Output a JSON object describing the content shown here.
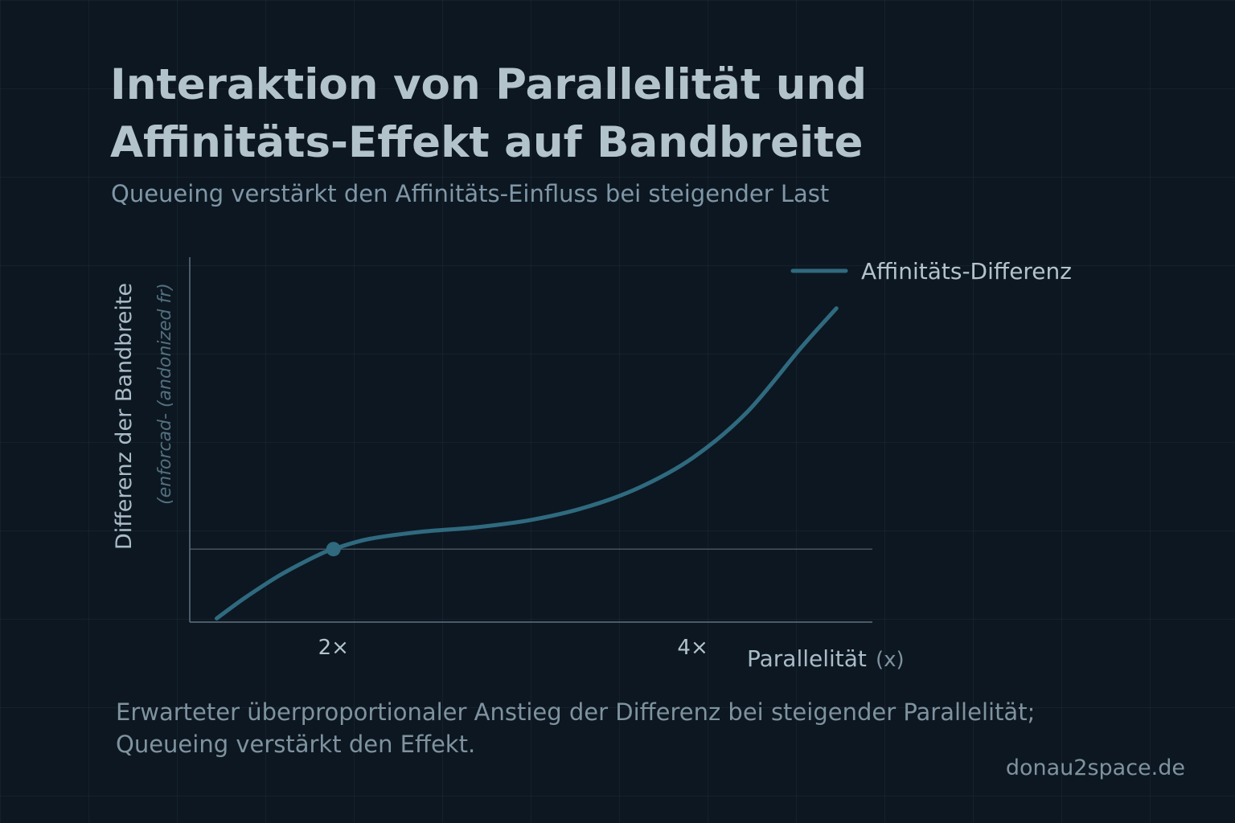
{
  "header": {
    "title_line1": "Interaktion von Parallelität und",
    "title_line2": "Affinitäts-Effekt auf Bandbreite",
    "subtitle": "Queueing verstärkt den Affinitäts-Einfluss bei steigender Last"
  },
  "note": {
    "line1": "Erwarteter überproportionaler Anstieg der Differenz bei steigender Parallelität;",
    "line2": "Queueing verstärkt den Effekt."
  },
  "footer": {
    "site": "donau2space.de"
  },
  "chart_data": {
    "type": "line",
    "xlabel_main": "Parallelität",
    "xlabel_unit": "(x)",
    "ylabel_main": "Differenz der Bandbreite",
    "ylabel_sub": "(enforcad- (andonized fr)",
    "x_ticks": [
      {
        "value": 2,
        "label": "2×"
      },
      {
        "value": 4,
        "label": "4×"
      }
    ],
    "xlim": [
      1.2,
      5.0
    ],
    "ylim": [
      -1.0,
      4.0
    ],
    "reference_line_y": 0,
    "grid": true,
    "legend_position": "top-right",
    "series": [
      {
        "name": "Affinitäts-Differenz",
        "color": "#2f6a7f",
        "x": [
          1.35,
          1.5,
          1.7,
          1.9,
          2.0,
          2.2,
          2.5,
          2.8,
          3.1,
          3.4,
          3.7,
          4.0,
          4.3,
          4.6,
          4.8
        ],
        "y": [
          -0.95,
          -0.68,
          -0.36,
          -0.1,
          0.0,
          0.14,
          0.24,
          0.3,
          0.4,
          0.57,
          0.84,
          1.25,
          1.87,
          2.75,
          3.3
        ]
      }
    ],
    "highlight_point": {
      "x": 2,
      "y": 0
    }
  }
}
